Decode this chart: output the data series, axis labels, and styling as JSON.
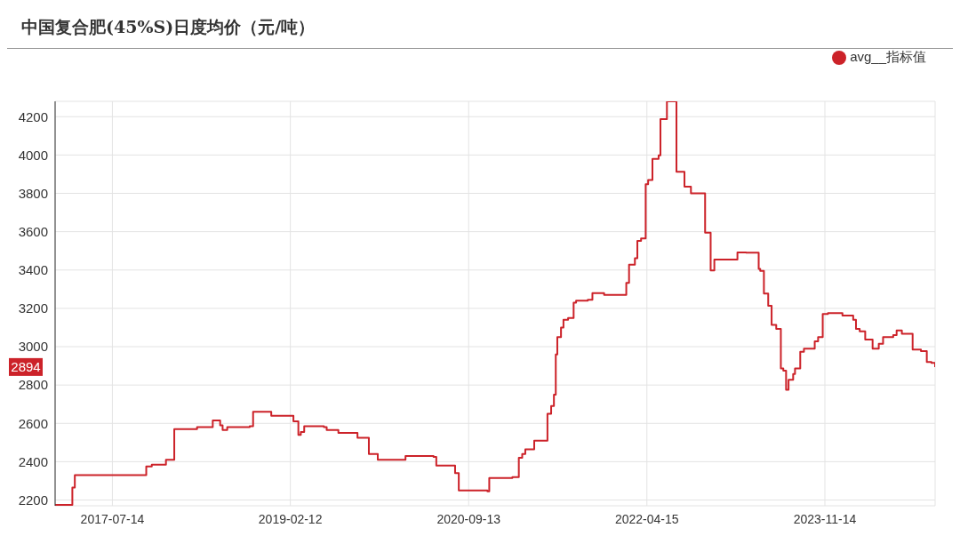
{
  "chart_data": {
    "type": "step",
    "title": "中国复合肥(45%S)日度均价（元/吨）",
    "x": [
      "2017-01-09",
      "2017-03-06",
      "2017-03-14",
      "2017-11-01",
      "2017-11-19",
      "2018-01-04",
      "2018-01-31",
      "2018-04-15",
      "2018-06-05",
      "2018-06-29",
      "2018-07-07",
      "2018-07-22",
      "2018-10-03",
      "2018-10-14",
      "2018-12-12",
      "2019-02-22",
      "2019-03-10",
      "2019-03-18",
      "2019-03-29",
      "2019-06-01",
      "2019-06-10",
      "2019-07-18",
      "2019-09-18",
      "2019-10-25",
      "2019-11-23",
      "2020-02-21",
      "2020-05-22",
      "2020-05-31",
      "2020-07-31",
      "2020-08-12",
      "2020-11-13",
      "2020-11-19",
      "2021-02-02",
      "2021-02-23",
      "2021-03-06",
      "2021-03-16",
      "2021-04-14",
      "2021-05-27",
      "2021-06-08",
      "2021-06-17",
      "2021-06-23",
      "2021-06-28",
      "2021-07-10",
      "2021-07-18",
      "2021-08-02",
      "2021-08-20",
      "2021-08-28",
      "2021-10-05",
      "2021-10-20",
      "2021-11-27",
      "2022-02-07",
      "2022-02-16",
      "2022-03-07",
      "2022-03-15",
      "2022-03-27",
      "2022-04-11",
      "2022-04-19",
      "2022-05-03",
      "2022-05-23",
      "2022-05-29",
      "2022-06-19",
      "2022-07-20",
      "2022-08-09",
      "2022-08-15",
      "2022-09-05",
      "2022-10-21",
      "2022-11-08",
      "2022-11-20",
      "2023-02-03",
      "2023-03-03",
      "2023-04-13",
      "2023-04-18",
      "2023-04-30",
      "2023-05-14",
      "2023-05-25",
      "2023-06-09",
      "2023-06-24",
      "2023-07-02",
      "2023-07-11",
      "2023-07-19",
      "2023-08-03",
      "2023-08-09",
      "2023-08-26",
      "2023-09-07",
      "2023-10-12",
      "2023-10-23",
      "2023-11-07",
      "2023-11-24",
      "2024-01-10",
      "2024-02-14",
      "2024-02-23",
      "2024-03-06",
      "2024-03-24",
      "2024-04-17",
      "2024-05-07",
      "2024-05-21",
      "2024-06-23",
      "2024-07-04",
      "2024-07-21",
      "2024-08-25",
      "2024-09-21",
      "2024-10-10",
      "2024-10-25",
      "2024-11-06"
    ],
    "series": [
      {
        "name": "avg__指标值",
        "color": "#cc2229",
        "values": [
          2175,
          2265,
          2330,
          2375,
          2385,
          2410,
          2570,
          2580,
          2615,
          2590,
          2565,
          2580,
          2585,
          2660,
          2640,
          2610,
          2540,
          2555,
          2585,
          2580,
          2565,
          2550,
          2525,
          2440,
          2410,
          2430,
          2425,
          2380,
          2340,
          2250,
          2245,
          2315,
          2320,
          2420,
          2440,
          2465,
          2510,
          2650,
          2690,
          2750,
          2960,
          3050,
          3100,
          3140,
          3150,
          3230,
          3240,
          3245,
          3280,
          3270,
          3333,
          3428,
          3462,
          3552,
          3565,
          3848,
          3870,
          3980,
          3998,
          4187,
          4280,
          3912,
          3912,
          3835,
          3800,
          3595,
          3398,
          3455,
          3492,
          3490,
          3406,
          3395,
          3277,
          3213,
          3114,
          3093,
          2887,
          2875,
          2775,
          2827,
          2857,
          2887,
          2973,
          2990,
          3028,
          3050,
          3170,
          3175,
          3162,
          3140,
          3093,
          3080,
          3037,
          2990,
          3015,
          3050,
          3060,
          3085,
          3067,
          2985,
          2977,
          2920,
          2915,
          2894
        ]
      }
    ],
    "xlim": [
      "2017-01-09",
      "2024-11-06"
    ],
    "xticks": [
      "2017-07-14",
      "2019-02-12",
      "2020-09-13",
      "2022-04-15",
      "2023-11-14"
    ],
    "ylim": [
      2170,
      4280
    ],
    "yticks": [
      2200,
      2400,
      2600,
      2800,
      3000,
      3200,
      3400,
      3600,
      3800,
      4000,
      4200
    ],
    "annotations": [
      "2894"
    ],
    "grid": true,
    "legend": "top right",
    "marker": "none",
    "line_style": "solid"
  }
}
